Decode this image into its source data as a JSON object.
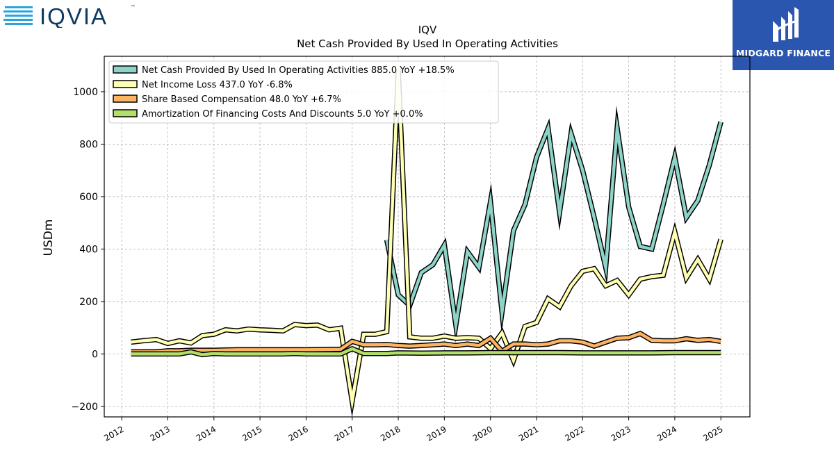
{
  "header": {
    "company_logo_text": "IQVIA",
    "company_logo_tm": "™",
    "brand_logo_text": "MIDGARD FINANCE"
  },
  "colors": {
    "operating_cash": "#8dd3c7",
    "net_income": "#ffffb3",
    "share_based": "#fdb462",
    "amortization": "#b3de69",
    "iqvia_blue": "#0d3a63",
    "iqvia_cyan": "#2aa4dc",
    "midgard_bg": "#2b56b0"
  },
  "chart_data": {
    "type": "line",
    "title": "IQV",
    "subtitle": "Net Cash Provided By Used In Operating Activities",
    "xlabel": "",
    "ylabel": "USDm",
    "xlim": [
      2011.62,
      2025.63
    ],
    "ylim": [
      -240,
      1135
    ],
    "x_ticks": [
      2012,
      2013,
      2014,
      2015,
      2016,
      2017,
      2018,
      2019,
      2020,
      2021,
      2022,
      2023,
      2024,
      2025
    ],
    "y_ticks": [
      -200,
      0,
      200,
      400,
      600,
      800,
      1000
    ],
    "grid": true,
    "legend_position": "top-left",
    "series": [
      {
        "name": "Net Cash Provided By Used In Operating Activities",
        "legend_label": "Net Cash Provided By Used In Operating Activities  885.0 YoY +18.5%",
        "color_key": "operating_cash",
        "x": [
          2017.75,
          2018.0,
          2018.25,
          2018.5,
          2018.75,
          2019.0,
          2019.25,
          2019.5,
          2019.75,
          2020.0,
          2020.25,
          2020.5,
          2020.75,
          2021.0,
          2021.25,
          2021.5,
          2021.75,
          2022.0,
          2022.25,
          2022.5,
          2022.75,
          2023.0,
          2023.25,
          2023.5,
          2023.75,
          2024.0,
          2024.25,
          2024.5,
          2024.75,
          2025.0
        ],
        "y": [
          435,
          225,
          185,
          310,
          340,
          415,
          110,
          390,
          330,
          580,
          160,
          470,
          570,
          750,
          860,
          540,
          840,
          700,
          520,
          330,
          860,
          560,
          410,
          400,
          570,
          750,
          520,
          585,
          720,
          885
        ]
      },
      {
        "name": "Net Income Loss",
        "legend_label": "Net Income Loss  437.0 YoY -6.8%",
        "color_key": "net_income",
        "x": [
          2012.2,
          2012.45,
          2012.75,
          2013.0,
          2013.25,
          2013.5,
          2013.75,
          2014.0,
          2014.25,
          2014.5,
          2014.75,
          2015.0,
          2015.25,
          2015.5,
          2015.75,
          2016.0,
          2016.25,
          2016.5,
          2016.75,
          2017.0,
          2017.25,
          2017.5,
          2017.75,
          2018.0,
          2018.25,
          2018.5,
          2018.75,
          2019.0,
          2019.25,
          2019.5,
          2019.75,
          2020.0,
          2020.25,
          2020.5,
          2020.75,
          2021.0,
          2021.25,
          2021.5,
          2021.75,
          2022.0,
          2022.25,
          2022.5,
          2022.75,
          2023.0,
          2023.25,
          2023.5,
          2023.75,
          2024.0,
          2024.25,
          2024.5,
          2024.75,
          2025.0
        ],
        "y": [
          45,
          50,
          55,
          40,
          50,
          42,
          70,
          75,
          92,
          88,
          95,
          92,
          90,
          88,
          112,
          108,
          110,
          92,
          98,
          -180,
          75,
          75,
          85,
          1080,
          65,
          60,
          60,
          68,
          60,
          62,
          60,
          20,
          80,
          -25,
          105,
          120,
          210,
          180,
          260,
          315,
          325,
          260,
          280,
          225,
          285,
          295,
          300,
          465,
          290,
          360,
          285,
          437
        ]
      },
      {
        "name": "Share Based Compensation",
        "legend_label": "Share Based Compensation  48.0 YoY +6.7%",
        "color_key": "share_based",
        "x": [
          2012.2,
          2012.5,
          2012.75,
          2013.0,
          2013.25,
          2013.5,
          2013.75,
          2014.0,
          2014.5,
          2015.0,
          2015.5,
          2016.0,
          2016.5,
          2016.75,
          2017.0,
          2017.25,
          2017.5,
          2017.75,
          2018.0,
          2018.25,
          2018.5,
          2018.75,
          2019.0,
          2019.25,
          2019.5,
          2019.75,
          2020.0,
          2020.25,
          2020.5,
          2020.75,
          2021.0,
          2021.25,
          2021.5,
          2021.75,
          2022.0,
          2022.25,
          2022.5,
          2022.75,
          2023.0,
          2023.25,
          2023.5,
          2023.75,
          2024.0,
          2024.25,
          2024.5,
          2024.75,
          2025.0
        ],
        "y": [
          8,
          8,
          8,
          12,
          12,
          14,
          14,
          14,
          16,
          16,
          16,
          16,
          17,
          18,
          48,
          35,
          35,
          36,
          32,
          30,
          32,
          35,
          38,
          32,
          38,
          32,
          60,
          10,
          38,
          38,
          35,
          38,
          50,
          50,
          45,
          30,
          45,
          60,
          62,
          78,
          52,
          50,
          50,
          58,
          52,
          55,
          48
        ]
      },
      {
        "name": "Amortization Of Financing Costs And Discounts",
        "legend_label": "Amortization Of Financing Costs And Discounts  5.0 YoY +0.0%",
        "color_key": "amortization",
        "x": [
          2012.2,
          2012.5,
          2012.75,
          2013.0,
          2013.25,
          2013.5,
          2013.75,
          2014.0,
          2014.25,
          2014.5,
          2015.0,
          2015.5,
          2015.75,
          2016.0,
          2016.5,
          2016.75,
          2017.0,
          2017.25,
          2017.5,
          2017.75,
          2018.0,
          2018.5,
          2019.0,
          2019.5,
          2020.0,
          2020.5,
          2021.0,
          2021.5,
          2022.0,
          2022.5,
          2023.0,
          2023.5,
          2024.0,
          2024.5,
          2025.0
        ],
        "y": [
          0,
          0,
          0,
          0,
          0,
          8,
          -3,
          2,
          0,
          0,
          0,
          0,
          2,
          0,
          0,
          0,
          20,
          2,
          2,
          2,
          4,
          3,
          4,
          4,
          5,
          5,
          5,
          5,
          4,
          4,
          4,
          4,
          5,
          5,
          5
        ]
      }
    ]
  }
}
